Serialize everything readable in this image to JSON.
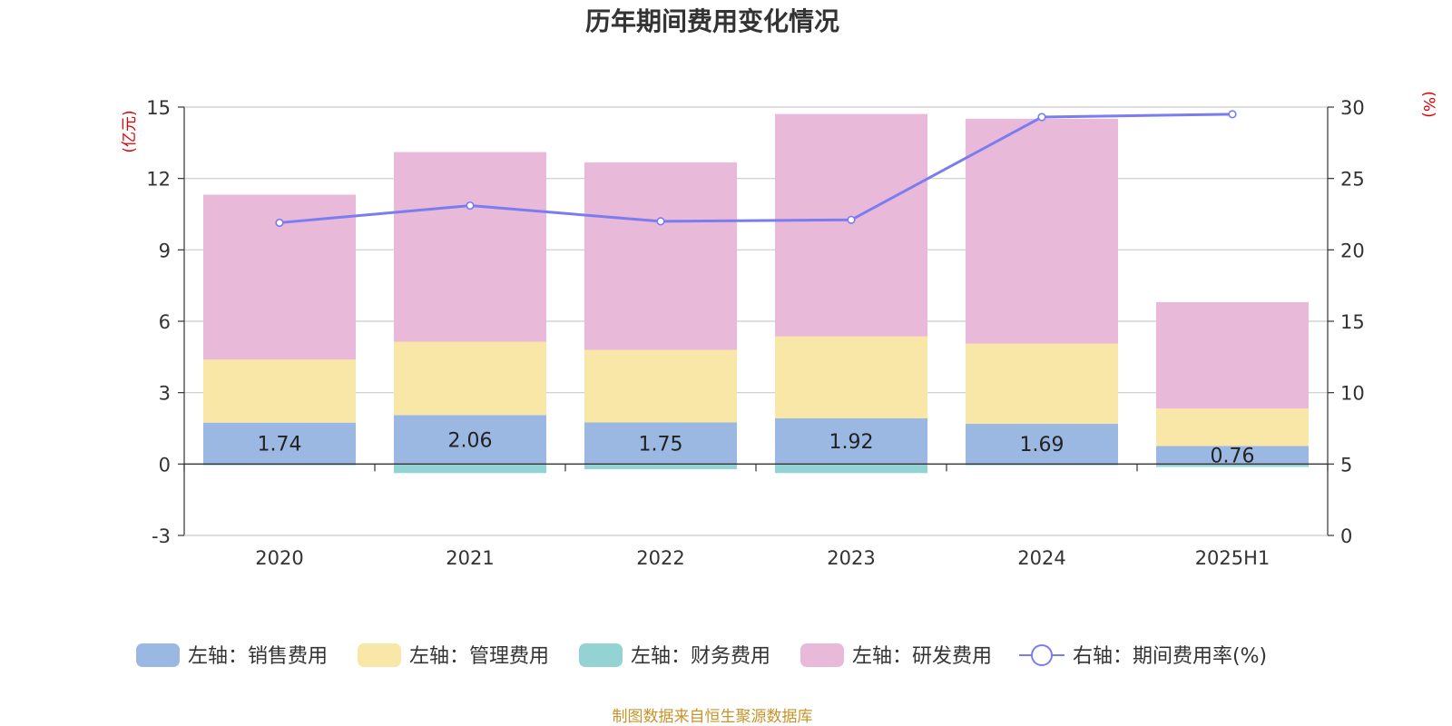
{
  "chart_data": {
    "type": "bar",
    "title": "历年期间费用变化情况",
    "categories": [
      "2020",
      "2021",
      "2022",
      "2023",
      "2024",
      "2025H1"
    ],
    "series": [
      {
        "name": "左轴：销售费用",
        "values": [
          1.74,
          2.06,
          1.75,
          1.92,
          1.69,
          0.76
        ],
        "color": "#9bb8e2",
        "axis": "left",
        "kind": "bar"
      },
      {
        "name": "左轴：管理费用",
        "values": [
          2.65,
          3.08,
          3.05,
          3.44,
          3.37,
          1.57
        ],
        "color": "#f8e7a6",
        "axis": "left",
        "kind": "bar"
      },
      {
        "name": "左轴：财务费用",
        "values": [
          -0.05,
          -0.38,
          -0.22,
          -0.38,
          -0.05,
          -0.12
        ],
        "color": "#93d3d3",
        "axis": "left",
        "kind": "bar"
      },
      {
        "name": "左轴：研发费用",
        "values": [
          6.93,
          7.97,
          7.88,
          9.35,
          9.45,
          4.47
        ],
        "color": "#e8b9d9",
        "axis": "left",
        "kind": "bar"
      },
      {
        "name": "右轴：期间费用率(%)",
        "values": [
          21.9,
          23.1,
          22.0,
          22.1,
          29.3,
          29.5
        ],
        "color": "#7b7cf0",
        "axis": "right",
        "kind": "line"
      }
    ],
    "left_axis": {
      "unit": "(亿元)",
      "ylim": [
        -3,
        15
      ],
      "ticks": [
        "15",
        "12",
        "9",
        "6",
        "3",
        "0",
        "-3"
      ]
    },
    "right_axis": {
      "unit": "(%)",
      "ylim": [
        0,
        30
      ],
      "ticks": [
        "30",
        "25",
        "20",
        "15",
        "10",
        "5",
        "0"
      ]
    },
    "data_labels": [
      "1.74",
      "2.06",
      "1.75",
      "1.92",
      "1.69",
      "0.76"
    ],
    "grid": true,
    "legend_position": "bottom"
  },
  "colors": {
    "grid": "#cccccc",
    "axis": "#333333",
    "unit": "#e00000",
    "source": "#c8932a"
  },
  "source_text": "制图数据来自恒生聚源数据库"
}
